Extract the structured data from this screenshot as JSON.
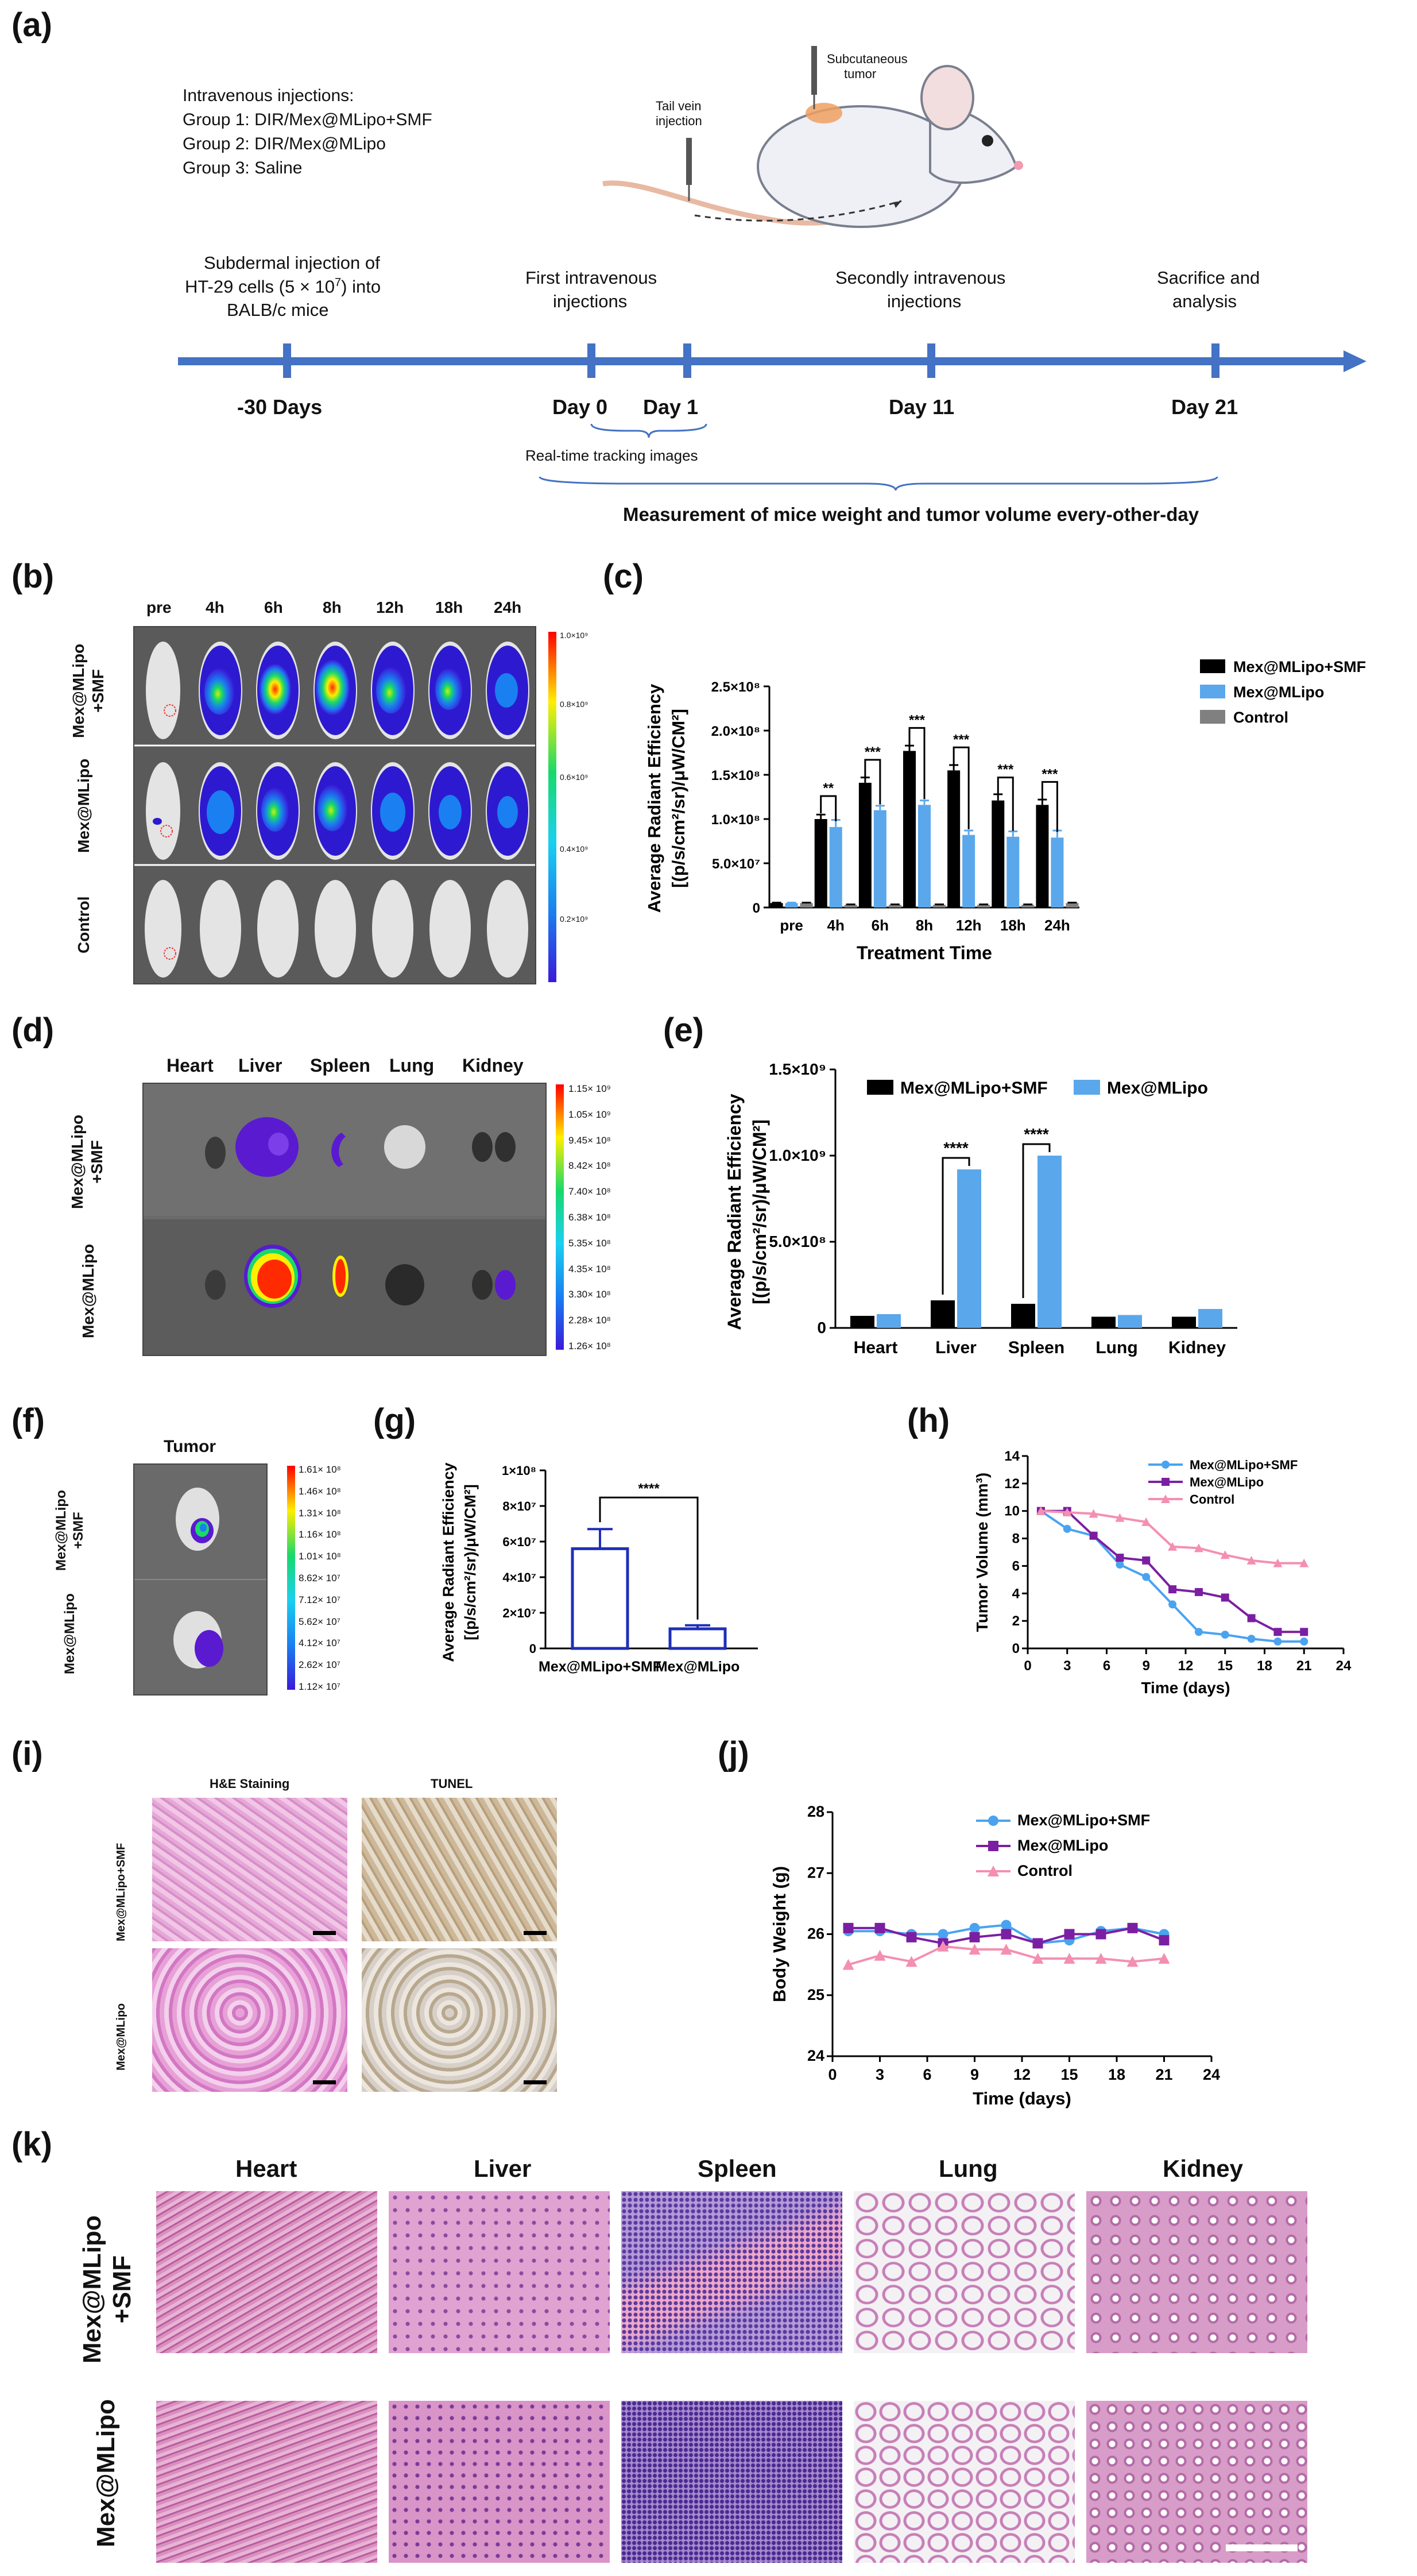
{
  "panels": {
    "a": "(a)",
    "b": "(b)",
    "c": "(c)",
    "d": "(d)",
    "e": "(e)",
    "f": "(f)",
    "g": "(g)",
    "h": "(h)",
    "i": "(i)",
    "j": "(j)",
    "k": "(k)"
  },
  "colors": {
    "black": "#000000",
    "blue": "#5aa7ec",
    "gray": "#808080",
    "timeline": "#4472c4",
    "navy": "#1f2fb8",
    "purple": "#7b1fa2",
    "pink": "#f48fb1",
    "lightblue": "#4aa3f0"
  },
  "timeline": {
    "injections_title": "Intravenous injections:",
    "group1": "Group 1: DIR/Mex@MLipo+SMF",
    "group2": "Group 2: DIR/Mex@MLipo",
    "group3": "Group 3: Saline",
    "tail_vein": "Tail vein",
    "injection": "injection",
    "subcutaneous": "Subcutaneous",
    "tumor": "tumor",
    "event1_l1": "Subdermal injection of",
    "event1_l2": "HT-29 cells (5 × 10",
    "event1_sup": "7",
    "event1_l2b": ") into",
    "event1_l3": "BALB/c mice",
    "event2_l1": "First intravenous",
    "event2_l2": "injections",
    "event3_l1": "Secondly intravenous",
    "event3_l2": "injections",
    "event4_l1": "Sacrifice and",
    "event4_l2": "analysis",
    "day_m30": "-30 Days",
    "day0": "Day 0",
    "day1": "Day 1",
    "day11": "Day 11",
    "day21": "Day 21",
    "realtime": "Real-time tracking images",
    "measurement": "Measurement of mice weight and tumor volume every-other-day"
  },
  "panel_b": {
    "timepoints": [
      "pre",
      "4h",
      "6h",
      "8h",
      "12h",
      "18h",
      "24h"
    ],
    "rows": [
      "Mex@MLipo +SMF",
      "Mex@MLipo",
      "Control"
    ],
    "row_line1": [
      "Mex@MLipo",
      "Mex@MLipo",
      "Control"
    ],
    "row_line2": [
      "+SMF",
      "",
      ""
    ],
    "colorbar": [
      "1.0×10⁹",
      "0.8×10⁹",
      "0.6×10⁹",
      "0.4×10⁹",
      "0.2×10⁹"
    ]
  },
  "panel_d": {
    "organs": [
      "Heart",
      "Liver",
      "Spleen",
      "Lung",
      "Kidney"
    ],
    "row1_l1": "Mex@MLipo",
    "row1_l2": "+SMF",
    "row2": "Mex@MLipo",
    "colorbar": [
      "1.15× 10⁹",
      "1.05× 10⁹",
      "9.45× 10⁸",
      "8.42× 10⁸",
      "7.40× 10⁸",
      "6.38× 10⁸",
      "5.35× 10⁸",
      "4.35× 10⁸",
      "3.30× 10⁸",
      "2.28× 10⁸",
      "1.26× 10⁸"
    ]
  },
  "panel_f": {
    "title": "Tumor",
    "row1_l1": "Mex@MLipo",
    "row1_l2": "+SMF",
    "row2": "Mex@MLipo",
    "colorbar": [
      "1.61× 10⁸",
      "1.46× 10⁸",
      "1.31× 10⁸",
      "1.16× 10⁸",
      "1.01× 10⁸",
      "8.62× 10⁷",
      "7.12× 10⁷",
      "5.62× 10⁷",
      "4.12× 10⁷",
      "2.62× 10⁷",
      "1.12× 10⁷"
    ]
  },
  "panel_i": {
    "col1": "H&E Staining",
    "col2": "TUNEL",
    "row1": "Mex@MLipo+SMF",
    "row2": "Mex@MLipo"
  },
  "panel_k": {
    "organs": [
      "Heart",
      "Liver",
      "Spleen",
      "Lung",
      "Kidney"
    ],
    "row1_l1": "Mex@MLipo",
    "row1_l2": "+SMF",
    "row2": "Mex@MLipo"
  },
  "chart_data": [
    {
      "id": "c",
      "type": "bar",
      "ylabel_l1": "Average Radiant Efficiency",
      "ylabel_l2": "[(p/s/cm²/sr)/μW/CM²]",
      "xlabel": "Treatment Time",
      "categories": [
        "pre",
        "4h",
        "6h",
        "8h",
        "12h",
        "18h",
        "24h"
      ],
      "series": [
        {
          "name": "Mex@MLipo+SMF",
          "color": "#000000",
          "values": [
            5000000,
            100000000,
            141000000,
            177000000,
            155000000,
            121000000,
            116000000
          ],
          "errors": [
            500000,
            5000000,
            6000000,
            6000000,
            6000000,
            7000000,
            6000000
          ]
        },
        {
          "name": "Mex@MLipo",
          "color": "#5aa7ec",
          "values": [
            5000000,
            91000000,
            110000000,
            116000000,
            82000000,
            80000000,
            79000000
          ],
          "errors": [
            500000,
            8000000,
            5000000,
            5000000,
            5000000,
            6000000,
            8000000
          ]
        },
        {
          "name": "Control",
          "color": "#808080",
          "values": [
            5000000,
            3000000,
            3000000,
            3000000,
            3000000,
            3000000,
            5000000
          ],
          "errors": [
            500000,
            500000,
            500000,
            500000,
            500000,
            500000,
            500000
          ]
        }
      ],
      "ylim": [
        0,
        250000000
      ],
      "yticks": [
        "0",
        "5.0×10⁷",
        "1.0×10⁸",
        "1.5×10⁸",
        "2.0×10⁸",
        "2.5×10⁸"
      ],
      "significance": [
        "**",
        "***",
        "***",
        "***",
        "***",
        "***"
      ],
      "legend": "top-right"
    },
    {
      "id": "e",
      "type": "bar",
      "ylabel_l1": "Average Radiant Efficiency",
      "ylabel_l2": "[(p/s/cm²/sr)/μW/CM²]",
      "categories": [
        "Heart",
        "Liver",
        "Spleen",
        "Lung",
        "Kidney"
      ],
      "series": [
        {
          "name": "Mex@MLipo+SMF",
          "color": "#000000",
          "values": [
            70000000,
            160000000,
            140000000,
            65000000,
            65000000
          ]
        },
        {
          "name": "Mex@MLipo",
          "color": "#5aa7ec",
          "values": [
            80000000,
            920000000,
            1000000000,
            75000000,
            110000000
          ]
        }
      ],
      "ylim": [
        0,
        1500000000
      ],
      "yticks": [
        "0",
        "5.0×10⁸",
        "1.0×10⁹",
        "1.5×10⁹"
      ],
      "significance": [
        "****",
        "****"
      ],
      "legend": "top"
    },
    {
      "id": "g",
      "type": "bar",
      "ylabel_l1": "Average Radiant Efficiency",
      "ylabel_l2": "[(p/s/cm²/sr)/μW/CM²]",
      "categories": [
        "Mex@MLipo+SMF",
        "Mex@MLipo"
      ],
      "values": [
        56000000,
        11000000
      ],
      "errors": [
        11000000,
        2000000
      ],
      "ylim": [
        0,
        100000000
      ],
      "yticks": [
        "0",
        "2×10⁷",
        "4×10⁷",
        "6×10⁷",
        "8×10⁷",
        "1×10⁸"
      ],
      "significance": "****"
    },
    {
      "id": "h",
      "type": "line",
      "ylabel": "Tumor Volume (mm³)",
      "xlabel": "Time (days)",
      "x": [
        1,
        3,
        5,
        7,
        9,
        11,
        13,
        15,
        17,
        19,
        21
      ],
      "series": [
        {
          "name": "Mex@MLipo+SMF",
          "color": "#4aa3f0",
          "marker": "circle",
          "values": [
            10,
            8.7,
            8.2,
            6.1,
            5.2,
            3.2,
            1.2,
            1.0,
            0.7,
            0.5,
            0.5
          ]
        },
        {
          "name": "Mex@MLipo",
          "color": "#7b1fa2",
          "marker": "square",
          "values": [
            10,
            10,
            8.2,
            6.6,
            6.4,
            4.3,
            4.1,
            3.7,
            2.2,
            1.2,
            1.2
          ]
        },
        {
          "name": "Control",
          "color": "#f48fb1",
          "marker": "triangle",
          "values": [
            10,
            9.9,
            9.8,
            9.5,
            9.2,
            7.4,
            7.3,
            6.8,
            6.4,
            6.2,
            6.2
          ]
        }
      ],
      "xlim": [
        0,
        24
      ],
      "ylim": [
        0,
        14
      ],
      "xticks": [
        "0",
        "3",
        "6",
        "9",
        "12",
        "15",
        "18",
        "21",
        "24"
      ],
      "yticks": [
        "0",
        "2",
        "4",
        "6",
        "8",
        "10",
        "12",
        "14"
      ],
      "legend": "top-right"
    },
    {
      "id": "j",
      "type": "line",
      "ylabel": "Body Weight (g)",
      "xlabel": "Time (days)",
      "x": [
        1,
        3,
        5,
        7,
        9,
        11,
        13,
        15,
        17,
        19,
        21
      ],
      "series": [
        {
          "name": "Mex@MLipo+SMF",
          "color": "#4aa3f0",
          "marker": "circle",
          "values": [
            26.05,
            26.05,
            26.0,
            26.0,
            26.1,
            26.15,
            25.85,
            25.9,
            26.05,
            26.1,
            26.0
          ]
        },
        {
          "name": "Mex@MLipo",
          "color": "#7b1fa2",
          "marker": "square",
          "values": [
            26.1,
            26.1,
            25.95,
            25.85,
            25.95,
            26.0,
            25.85,
            26.0,
            26.0,
            26.1,
            25.9
          ]
        },
        {
          "name": "Control",
          "color": "#f48fb1",
          "marker": "triangle",
          "values": [
            25.5,
            25.65,
            25.55,
            25.8,
            25.75,
            25.75,
            25.6,
            25.6,
            25.6,
            25.55,
            25.6
          ]
        }
      ],
      "xlim": [
        0,
        24
      ],
      "ylim": [
        24,
        28
      ],
      "xticks": [
        "0",
        "3",
        "6",
        "9",
        "12",
        "15",
        "18",
        "21",
        "24"
      ],
      "yticks": [
        "24",
        "25",
        "26",
        "27",
        "28"
      ],
      "legend": "top-right"
    }
  ]
}
